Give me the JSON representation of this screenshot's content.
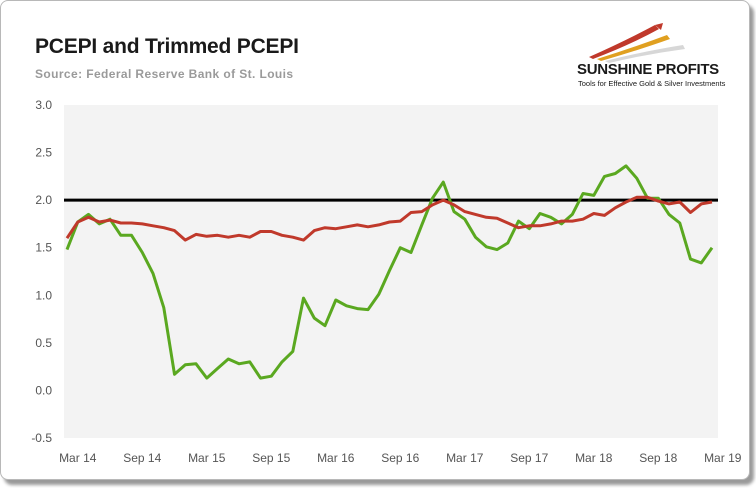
{
  "header": {
    "title": "PCEPI and Trimmed PCEPI",
    "subtitle": "Source: Federal Reserve Bank of St. Louis"
  },
  "logo": {
    "name": "SUNSHINE PROFITS",
    "tagline": "Tools for Effective Gold & Silver Investments"
  },
  "colors": {
    "pcepi": "#5aa820",
    "trimmed": "#c0392b",
    "reference": "#000000",
    "plot_background": "#f3f3f3"
  },
  "chart_data": {
    "type": "line",
    "ylim": [
      -0.5,
      3.0
    ],
    "yticks": [
      "3.0",
      "2.5",
      "2.0",
      "1.5",
      "1.0",
      "0.5",
      "0.0",
      "-0.5"
    ],
    "ytick_values": [
      3.0,
      2.5,
      2.0,
      1.5,
      1.0,
      0.5,
      0.0,
      -0.5
    ],
    "xticks": [
      "Mar 14",
      "Sep 14",
      "Mar 15",
      "Sep 15",
      "Mar 16",
      "Sep 16",
      "Mar 17",
      "Sep 17",
      "Mar 18",
      "Sep 18",
      "Mar 19"
    ],
    "x_start": "Feb 14",
    "x_end": "Mar 19",
    "reference_line": 2.0,
    "series": [
      {
        "values": [
          1.48,
          1.77,
          1.85,
          1.75,
          1.8,
          1.63,
          1.63,
          1.45,
          1.23,
          0.87,
          0.17,
          0.27,
          0.28,
          0.13,
          0.23,
          0.33,
          0.28,
          0.3,
          0.13,
          0.15,
          0.3,
          0.41,
          0.97,
          0.76,
          0.68,
          0.95,
          0.89,
          0.86,
          0.85,
          1.01,
          1.26,
          1.5,
          1.45,
          1.74,
          2.02,
          2.19,
          1.88,
          1.8,
          1.61,
          1.51,
          1.48,
          1.55,
          1.78,
          1.7,
          1.86,
          1.82,
          1.75,
          1.85,
          2.07,
          2.05,
          2.25,
          2.28,
          2.36,
          2.23,
          2.02,
          2.02,
          1.85,
          1.76,
          1.38,
          1.34,
          1.5
        ]
      },
      {
        "values": [
          1.6,
          1.77,
          1.82,
          1.77,
          1.79,
          1.76,
          1.76,
          1.75,
          1.73,
          1.71,
          1.68,
          1.58,
          1.64,
          1.62,
          1.63,
          1.61,
          1.63,
          1.61,
          1.67,
          1.67,
          1.63,
          1.61,
          1.58,
          1.68,
          1.71,
          1.7,
          1.72,
          1.74,
          1.72,
          1.74,
          1.77,
          1.78,
          1.87,
          1.88,
          1.95,
          2.0,
          1.95,
          1.88,
          1.85,
          1.82,
          1.81,
          1.76,
          1.71,
          1.73,
          1.73,
          1.75,
          1.78,
          1.78,
          1.8,
          1.86,
          1.84,
          1.92,
          1.98,
          2.03,
          2.03,
          1.99,
          1.96,
          1.98,
          1.87,
          1.96,
          1.98
        ]
      }
    ]
  }
}
